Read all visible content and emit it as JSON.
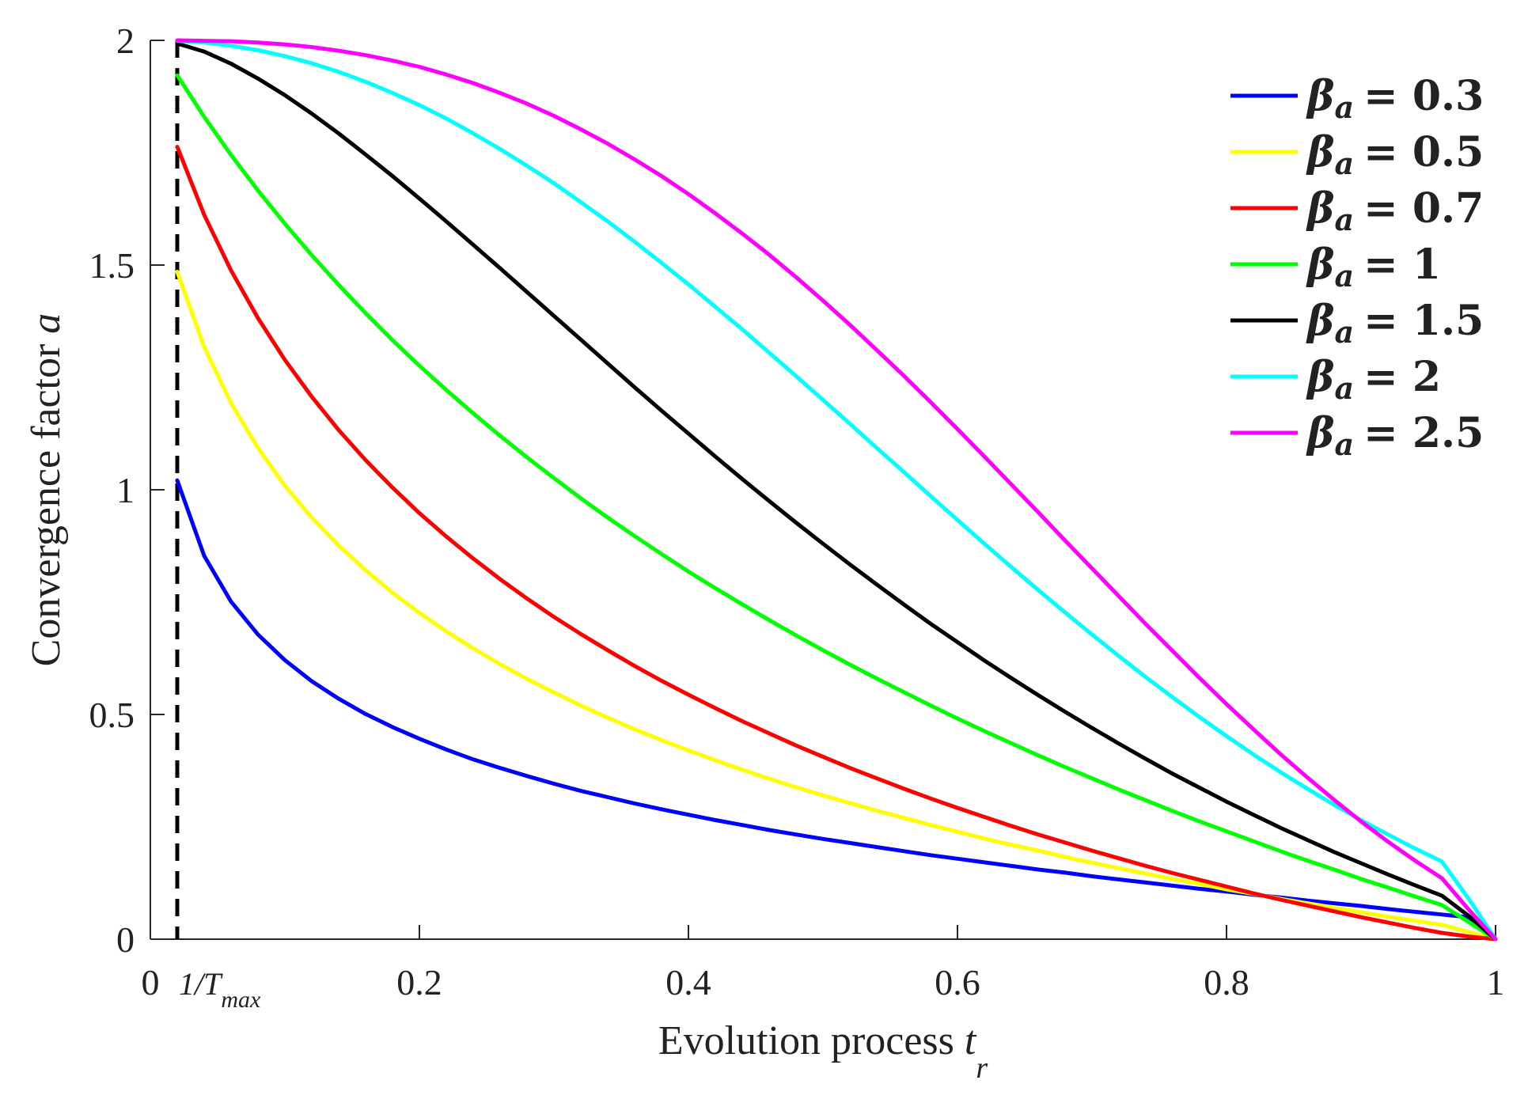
{
  "chart_data": {
    "type": "line",
    "xlabel": "Evolution process",
    "xlabel_var": "t",
    "xlabel_sub": "r",
    "ylabel": "Convergence factor",
    "ylabel_var": "a",
    "xlim": [
      0,
      1
    ],
    "ylim": [
      0,
      2
    ],
    "x_ticks": [
      0.2,
      0.4,
      0.6,
      0.8,
      1
    ],
    "x_tick_labels": [
      "0.2",
      "0.4",
      "0.6",
      "0.8",
      "1"
    ],
    "x_origin_label": "0",
    "y_ticks": [
      0,
      0.5,
      1,
      1.5,
      2
    ],
    "y_tick_labels": [
      "0",
      "0.5",
      "1",
      "1.5",
      "2"
    ],
    "grid": false,
    "legend_position": "top-right",
    "annotation": {
      "x": 0.02,
      "style": "dashed",
      "color": "#000000",
      "label_main": "1/T",
      "label_sub": "max"
    },
    "series": [
      {
        "name": "β_a = 0.3",
        "label_symbol": "β",
        "label_sub": "a",
        "label_value": "= 0.3",
        "color": "#0000ff",
        "beta": 0.3
      },
      {
        "name": "β_a = 0.5",
        "label_symbol": "β",
        "label_sub": "a",
        "label_value": "= 0.5",
        "color": "#ffff00",
        "beta": 0.5
      },
      {
        "name": "β_a = 0.7",
        "label_symbol": "β",
        "label_sub": "a",
        "label_value": "= 0.7",
        "color": "#ff0000",
        "beta": 0.7
      },
      {
        "name": "β_a = 1",
        "label_symbol": "β",
        "label_sub": "a",
        "label_value": "= 1",
        "color": "#00ff00",
        "beta": 1
      },
      {
        "name": "β_a = 1.5",
        "label_symbol": "β",
        "label_sub": "a",
        "label_value": "= 1.5",
        "color": "#000000",
        "beta": 1.5
      },
      {
        "name": "β_a = 2",
        "label_symbol": "β",
        "label_sub": "a",
        "label_value": "= 2",
        "color": "#00ffff",
        "beta": 2
      },
      {
        "name": "β_a = 2.5",
        "label_symbol": "β",
        "label_sub": "a",
        "label_value": "= 2.5",
        "color": "#ff00ff",
        "beta": 2.5
      }
    ],
    "x": [
      0.02,
      0.04,
      0.06,
      0.08,
      0.1,
      0.12,
      0.14,
      0.16,
      0.18,
      0.2,
      0.22,
      0.24,
      0.26,
      0.28,
      0.3,
      0.32,
      0.34,
      0.36,
      0.38,
      0.4,
      0.42,
      0.44,
      0.46,
      0.48,
      0.5,
      0.52,
      0.54,
      0.56,
      0.58,
      0.6,
      0.62,
      0.64,
      0.66,
      0.68,
      0.7,
      0.72,
      0.74,
      0.76,
      0.78,
      0.8,
      0.82,
      0.84,
      0.86,
      0.88,
      0.9,
      0.92,
      0.94,
      0.96,
      0.98,
      1.0
    ],
    "series_values": [
      [
        1.021,
        0.853,
        0.751,
        0.678,
        0.621,
        0.574,
        0.535,
        0.501,
        0.472,
        0.446,
        0.422,
        0.4,
        0.381,
        0.363,
        0.346,
        0.33,
        0.316,
        0.302,
        0.289,
        0.277,
        0.265,
        0.254,
        0.243,
        0.233,
        0.223,
        0.214,
        0.205,
        0.196,
        0.187,
        0.179,
        0.171,
        0.163,
        0.155,
        0.148,
        0.14,
        0.133,
        0.126,
        0.119,
        0.112,
        0.106,
        0.099,
        0.093,
        0.086,
        0.08,
        0.074,
        0.067,
        0.061,
        0.055,
        0.049,
        0.0
      ],
      [
        1.485,
        1.318,
        1.193,
        1.093,
        1.009,
        0.938,
        0.876,
        0.821,
        0.771,
        0.726,
        0.685,
        0.647,
        0.612,
        0.579,
        0.549,
        0.52,
        0.493,
        0.467,
        0.443,
        0.42,
        0.398,
        0.377,
        0.357,
        0.338,
        0.32,
        0.303,
        0.286,
        0.27,
        0.254,
        0.239,
        0.224,
        0.21,
        0.197,
        0.183,
        0.17,
        0.158,
        0.146,
        0.134,
        0.123,
        0.111,
        0.101,
        0.09,
        0.08,
        0.07,
        0.06,
        0.05,
        0.041,
        0.032,
        0.016,
        0.0
      ],
      [
        1.763,
        1.612,
        1.488,
        1.382,
        1.289,
        1.207,
        1.133,
        1.066,
        1.005,
        0.948,
        0.896,
        0.847,
        0.801,
        0.758,
        0.717,
        0.679,
        0.643,
        0.608,
        0.575,
        0.544,
        0.514,
        0.485,
        0.458,
        0.431,
        0.406,
        0.381,
        0.358,
        0.335,
        0.313,
        0.292,
        0.272,
        0.252,
        0.233,
        0.215,
        0.197,
        0.18,
        0.163,
        0.147,
        0.132,
        0.117,
        0.102,
        0.088,
        0.075,
        0.062,
        0.049,
        0.037,
        0.025,
        0.014,
        0.006,
        0.0
      ],
      [
        1.922,
        1.83,
        1.745,
        1.666,
        1.592,
        1.522,
        1.456,
        1.393,
        1.333,
        1.276,
        1.222,
        1.17,
        1.12,
        1.072,
        1.026,
        0.981,
        0.938,
        0.897,
        0.857,
        0.818,
        0.781,
        0.745,
        0.71,
        0.676,
        0.643,
        0.611,
        0.58,
        0.55,
        0.52,
        0.491,
        0.463,
        0.436,
        0.409,
        0.383,
        0.358,
        0.333,
        0.309,
        0.285,
        0.262,
        0.24,
        0.218,
        0.196,
        0.175,
        0.155,
        0.134,
        0.115,
        0.095,
        0.076,
        0.038,
        0.0
      ],
      [
        1.993,
        1.975,
        1.948,
        1.915,
        1.878,
        1.837,
        1.793,
        1.746,
        1.698,
        1.648,
        1.597,
        1.545,
        1.493,
        1.44,
        1.387,
        1.334,
        1.281,
        1.228,
        1.176,
        1.125,
        1.074,
        1.024,
        0.975,
        0.927,
        0.88,
        0.834,
        0.789,
        0.745,
        0.702,
        0.661,
        0.62,
        0.581,
        0.543,
        0.506,
        0.47,
        0.435,
        0.401,
        0.368,
        0.337,
        0.306,
        0.277,
        0.248,
        0.221,
        0.194,
        0.169,
        0.144,
        0.12,
        0.097,
        0.052,
        0.0
      ],
      [
        1.999,
        1.995,
        1.988,
        1.978,
        1.965,
        1.949,
        1.93,
        1.908,
        1.883,
        1.856,
        1.826,
        1.793,
        1.758,
        1.721,
        1.682,
        1.64,
        1.597,
        1.552,
        1.505,
        1.457,
        1.407,
        1.357,
        1.305,
        1.253,
        1.2,
        1.147,
        1.093,
        1.04,
        0.986,
        0.933,
        0.88,
        0.828,
        0.777,
        0.727,
        0.678,
        0.63,
        0.583,
        0.538,
        0.494,
        0.452,
        0.411,
        0.372,
        0.335,
        0.299,
        0.265,
        0.233,
        0.202,
        0.173,
        0.09,
        0.0
      ],
      [
        2.0,
        1.999,
        1.998,
        1.995,
        1.991,
        1.985,
        1.977,
        1.967,
        1.955,
        1.941,
        1.924,
        1.905,
        1.883,
        1.859,
        1.832,
        1.802,
        1.77,
        1.735,
        1.698,
        1.658,
        1.615,
        1.57,
        1.523,
        1.473,
        1.421,
        1.367,
        1.311,
        1.254,
        1.195,
        1.135,
        1.074,
        1.012,
        0.95,
        0.887,
        0.825,
        0.763,
        0.701,
        0.641,
        0.581,
        0.523,
        0.467,
        0.412,
        0.36,
        0.31,
        0.262,
        0.217,
        0.175,
        0.136,
        0.066,
        0.0
      ]
    ]
  }
}
